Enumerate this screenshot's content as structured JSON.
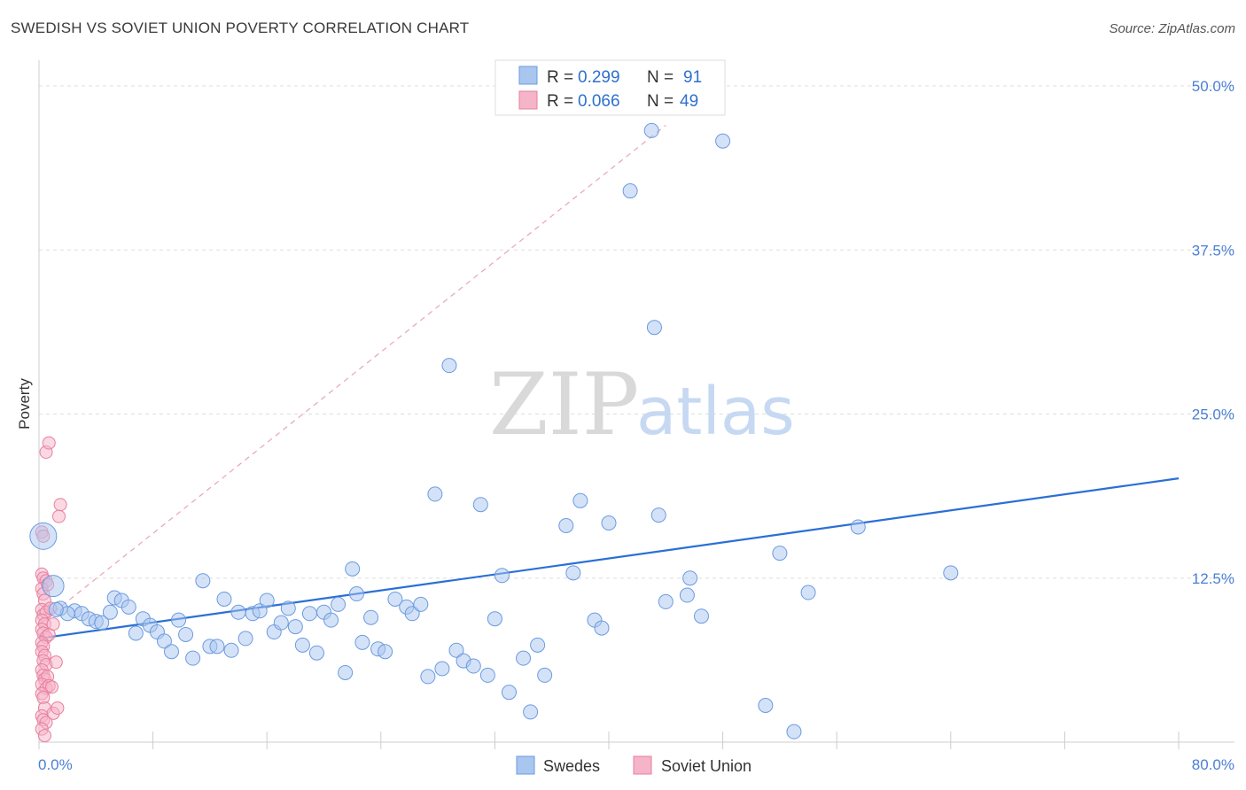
{
  "title": "SWEDISH VS SOVIET UNION POVERTY CORRELATION CHART",
  "source": "Source: ZipAtlas.com",
  "watermark": {
    "part1": "ZIP",
    "part2": "atlas"
  },
  "colors": {
    "swedes_fill": "#a9c6ef",
    "swedes_stroke": "#6b9be0",
    "swedes_line": "#2a6fd6",
    "soviet_fill": "#f6b4c8",
    "soviet_stroke": "#e87ea0",
    "soviet_line": "#e05a86",
    "grid": "#dddddd",
    "axis_text": "#4a7fd4"
  },
  "legend": {
    "r_label": "R =",
    "n_label": "N =",
    "rows": [
      {
        "series": "Swedes",
        "r": "0.299",
        "n": "91"
      },
      {
        "series": "Soviet Union",
        "r": "0.066",
        "n": "49"
      }
    ]
  },
  "chart_data": {
    "type": "scatter",
    "title": "SWEDISH VS SOVIET UNION POVERTY CORRELATION CHART",
    "xlabel": "",
    "ylabel": "Poverty",
    "xlim": [
      0,
      80
    ],
    "ylim": [
      0,
      50
    ],
    "x_tick_labels": [
      "0.0%",
      "80.0%"
    ],
    "y_ticks": [
      12.5,
      25.0,
      37.5,
      50.0
    ],
    "y_tick_labels": [
      "12.5%",
      "25.0%",
      "37.5%",
      "50.0%"
    ],
    "grid": true,
    "legend_position": "top-center",
    "series": [
      {
        "name": "Swedes",
        "trend": {
          "x": [
            0,
            80
          ],
          "y": [
            7.9,
            20.1
          ],
          "style": "solid"
        },
        "points": [
          [
            0.3,
            15.7
          ],
          [
            1.0,
            11.9
          ],
          [
            1.5,
            10.2
          ],
          [
            2.5,
            10.0
          ],
          [
            3.0,
            9.8
          ],
          [
            3.5,
            9.4
          ],
          [
            4.0,
            9.2
          ],
          [
            4.4,
            9.1
          ],
          [
            5.0,
            9.9
          ],
          [
            5.3,
            11.0
          ],
          [
            5.8,
            10.8
          ],
          [
            6.3,
            10.3
          ],
          [
            6.8,
            8.3
          ],
          [
            7.3,
            9.4
          ],
          [
            7.8,
            8.9
          ],
          [
            8.3,
            8.4
          ],
          [
            8.8,
            7.7
          ],
          [
            9.3,
            6.9
          ],
          [
            9.8,
            9.3
          ],
          [
            10.3,
            8.2
          ],
          [
            10.8,
            6.4
          ],
          [
            11.5,
            12.3
          ],
          [
            12.0,
            7.3
          ],
          [
            12.5,
            7.3
          ],
          [
            13.0,
            10.9
          ],
          [
            13.5,
            7.0
          ],
          [
            14.0,
            9.9
          ],
          [
            14.5,
            7.9
          ],
          [
            15.0,
            9.8
          ],
          [
            15.5,
            10.0
          ],
          [
            16.0,
            10.8
          ],
          [
            16.5,
            8.4
          ],
          [
            17.0,
            9.1
          ],
          [
            17.5,
            10.2
          ],
          [
            18.0,
            8.8
          ],
          [
            18.5,
            7.4
          ],
          [
            19.0,
            9.8
          ],
          [
            19.5,
            6.8
          ],
          [
            20.0,
            9.9
          ],
          [
            20.5,
            9.3
          ],
          [
            21.0,
            10.5
          ],
          [
            21.5,
            5.3
          ],
          [
            22.0,
            13.2
          ],
          [
            22.3,
            11.3
          ],
          [
            22.7,
            7.6
          ],
          [
            23.3,
            9.5
          ],
          [
            23.8,
            7.1
          ],
          [
            24.3,
            6.9
          ],
          [
            25.0,
            10.9
          ],
          [
            25.8,
            10.3
          ],
          [
            26.2,
            9.8
          ],
          [
            26.8,
            10.5
          ],
          [
            27.3,
            5.0
          ],
          [
            27.8,
            18.9
          ],
          [
            28.3,
            5.6
          ],
          [
            28.8,
            28.7
          ],
          [
            29.3,
            7.0
          ],
          [
            29.8,
            6.2
          ],
          [
            30.5,
            5.8
          ],
          [
            31.0,
            18.1
          ],
          [
            31.5,
            5.1
          ],
          [
            32.0,
            9.4
          ],
          [
            32.5,
            12.7
          ],
          [
            33.0,
            3.8
          ],
          [
            34.0,
            6.4
          ],
          [
            34.5,
            2.3
          ],
          [
            35.0,
            7.4
          ],
          [
            35.5,
            5.1
          ],
          [
            37.0,
            16.5
          ],
          [
            37.5,
            12.9
          ],
          [
            38.0,
            18.4
          ],
          [
            39.0,
            9.3
          ],
          [
            39.5,
            8.7
          ],
          [
            40.0,
            16.7
          ],
          [
            41.5,
            42.0
          ],
          [
            43.0,
            46.6
          ],
          [
            43.2,
            31.6
          ],
          [
            43.5,
            17.3
          ],
          [
            44.0,
            10.7
          ],
          [
            45.5,
            11.2
          ],
          [
            45.7,
            12.5
          ],
          [
            46.5,
            9.6
          ],
          [
            48.0,
            45.8
          ],
          [
            51.0,
            2.8
          ],
          [
            52.0,
            14.4
          ],
          [
            53.0,
            0.8
          ],
          [
            54.0,
            11.4
          ],
          [
            57.5,
            16.4
          ],
          [
            64.0,
            12.9
          ],
          [
            2.0,
            9.8
          ],
          [
            1.2,
            10.1
          ]
        ]
      },
      {
        "name": "Soviet Union",
        "trend": {
          "x": [
            0,
            44
          ],
          "y": [
            9.0,
            47.0
          ],
          "style": "dashed"
        },
        "points": [
          [
            0.2,
            16.0
          ],
          [
            0.3,
            15.7
          ],
          [
            0.5,
            22.1
          ],
          [
            0.7,
            22.8
          ],
          [
            1.5,
            18.1
          ],
          [
            1.4,
            17.2
          ],
          [
            0.2,
            12.8
          ],
          [
            0.3,
            12.5
          ],
          [
            0.5,
            12.3
          ],
          [
            0.2,
            11.7
          ],
          [
            0.3,
            11.3
          ],
          [
            0.4,
            10.8
          ],
          [
            0.2,
            10.1
          ],
          [
            0.3,
            9.7
          ],
          [
            0.5,
            9.9
          ],
          [
            0.8,
            10.2
          ],
          [
            0.2,
            9.3
          ],
          [
            0.4,
            9.0
          ],
          [
            0.2,
            8.6
          ],
          [
            0.3,
            8.3
          ],
          [
            0.5,
            8.0
          ],
          [
            0.7,
            8.2
          ],
          [
            1.0,
            9.0
          ],
          [
            0.2,
            7.6
          ],
          [
            0.3,
            7.3
          ],
          [
            0.2,
            6.9
          ],
          [
            0.4,
            6.6
          ],
          [
            0.3,
            6.2
          ],
          [
            0.5,
            5.9
          ],
          [
            1.2,
            6.1
          ],
          [
            0.2,
            5.5
          ],
          [
            0.3,
            5.1
          ],
          [
            0.4,
            4.8
          ],
          [
            0.6,
            5.0
          ],
          [
            0.2,
            4.4
          ],
          [
            0.5,
            4.1
          ],
          [
            0.7,
            4.3
          ],
          [
            0.9,
            4.2
          ],
          [
            0.2,
            3.7
          ],
          [
            0.3,
            3.4
          ],
          [
            0.4,
            2.6
          ],
          [
            1.0,
            2.2
          ],
          [
            1.3,
            2.6
          ],
          [
            0.2,
            2.0
          ],
          [
            0.3,
            1.7
          ],
          [
            0.5,
            1.5
          ],
          [
            0.2,
            1.0
          ],
          [
            0.4,
            0.5
          ],
          [
            0.6,
            12.0
          ]
        ]
      }
    ]
  }
}
